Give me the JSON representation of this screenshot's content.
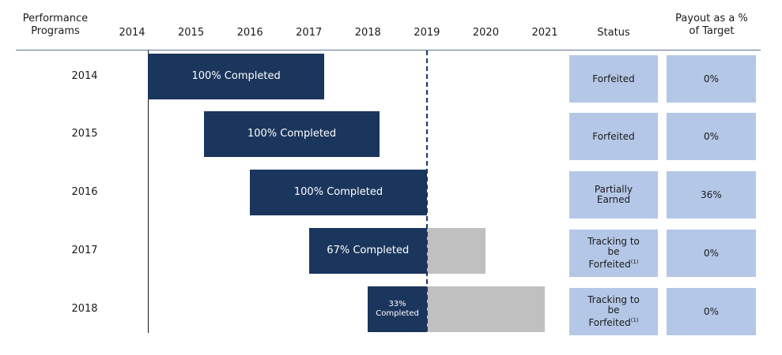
{
  "chart_data": {
    "type": "gantt",
    "row_header": "Performance Programs",
    "status_header": "Status",
    "payout_header": "Payout as a % of Target",
    "xlim": [
      2014,
      2021
    ],
    "xticks": [
      2014,
      2015,
      2016,
      2017,
      2018,
      2019,
      2020,
      2021
    ],
    "reference_line": 2019,
    "completed_color": "#1b365d",
    "projected_color": "#c0c0c0",
    "box_color": "#b4c7e7",
    "programs": [
      {
        "name": "2014",
        "start": 2014.27,
        "completed_end": 2017.26,
        "label": "100% Completed",
        "status": "Forfeited",
        "payout": "0%"
      },
      {
        "name": "2015",
        "start": 2015.22,
        "completed_end": 2018.2,
        "label": "100% Completed",
        "status": "Forfeited",
        "payout": "0%"
      },
      {
        "name": "2016",
        "start": 2016.0,
        "completed_end": 2019.0,
        "label": "100% Completed",
        "status": "Partially Earned",
        "payout": "36%"
      },
      {
        "name": "2017",
        "start": 2017.0,
        "completed_end": 2019.0,
        "projected_end": 2020.0,
        "label": "67% Completed",
        "status": "Tracking to be Forfeited",
        "status_note": "(1)",
        "payout": "0%"
      },
      {
        "name": "2018",
        "start": 2018.0,
        "completed_end": 2019.0,
        "projected_end": 2021.0,
        "label": "33% Completed",
        "status": "Tracking to be Forfeited",
        "status_note": "(1)",
        "payout": "0%"
      }
    ]
  }
}
